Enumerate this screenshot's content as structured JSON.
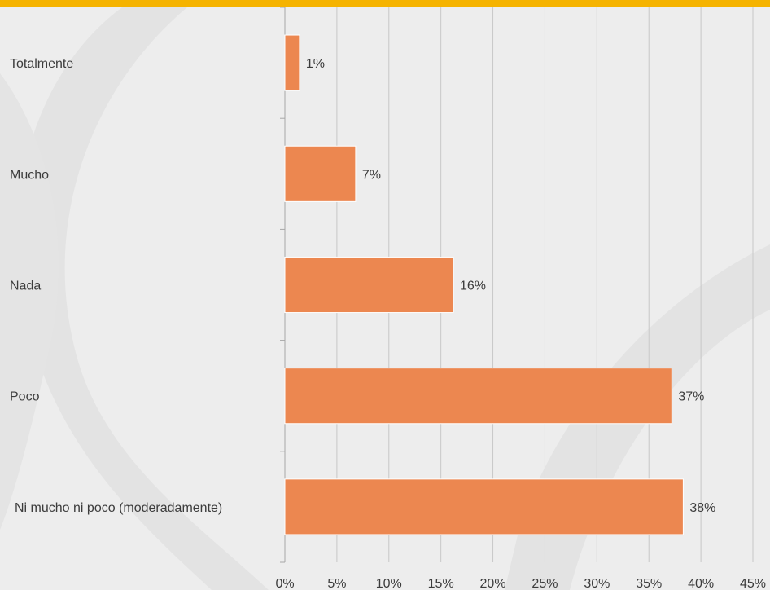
{
  "chart_data": {
    "type": "bar",
    "orientation": "horizontal",
    "categories": [
      "Totalmente",
      "Mucho",
      "Nada",
      "Poco",
      "Ni mucho ni poco (moderadamente)"
    ],
    "values": [
      1.4,
      6.8,
      16.2,
      37.2,
      38.3
    ],
    "value_labels": [
      "1%",
      "7%",
      "16%",
      "37%",
      "38%"
    ],
    "xlim": [
      0,
      45
    ],
    "x_ticks": [
      "0%",
      "5%",
      "10%",
      "15%",
      "20%",
      "25%",
      "30%",
      "35%",
      "40%",
      "45%"
    ],
    "grid": "vertical",
    "legend": "none"
  },
  "colors": {
    "bar": "#ec8750",
    "bar_edge": "#ffffff",
    "accent_bar": "#f5b300",
    "gridline": "#c8c8c8",
    "axis": "#a6a6a6",
    "background": "#ededed"
  }
}
